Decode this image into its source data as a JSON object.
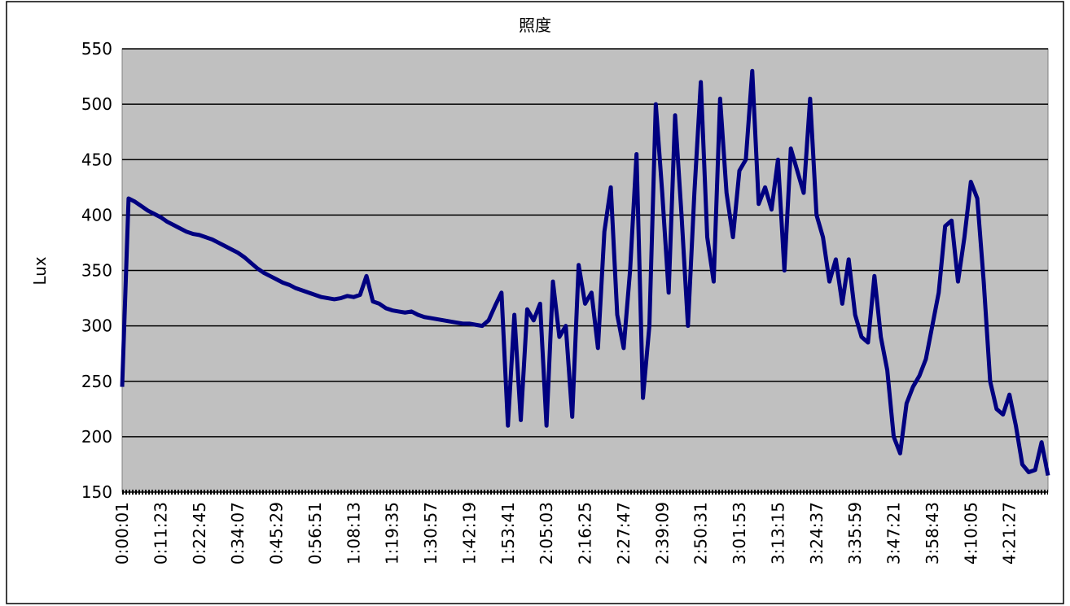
{
  "chart_data": {
    "type": "line",
    "title": "照度",
    "y_label": "Lux",
    "categories": [
      "0:00:01",
      null,
      null,
      null,
      null,
      null,
      "0:11:23",
      null,
      null,
      null,
      null,
      null,
      "0:22:45",
      null,
      null,
      null,
      null,
      null,
      "0:34:07",
      null,
      null,
      null,
      null,
      null,
      "0:45:29",
      null,
      null,
      null,
      null,
      null,
      "0:56:51",
      null,
      null,
      null,
      null,
      null,
      "1:08:13",
      null,
      null,
      null,
      null,
      null,
      "1:19:35",
      null,
      null,
      null,
      null,
      null,
      "1:30:57",
      null,
      null,
      null,
      null,
      null,
      "1:42:19",
      null,
      null,
      null,
      null,
      null,
      "1:53:41",
      null,
      null,
      null,
      null,
      null,
      "2:05:03",
      null,
      null,
      null,
      null,
      null,
      "2:16:25",
      null,
      null,
      null,
      null,
      null,
      "2:27:47",
      null,
      null,
      null,
      null,
      null,
      "2:39:09",
      null,
      null,
      null,
      null,
      null,
      "2:50:31",
      null,
      null,
      null,
      null,
      null,
      "3:01:53",
      null,
      null,
      null,
      null,
      null,
      "3:13:15",
      null,
      null,
      null,
      null,
      null,
      "3:24:37",
      null,
      null,
      null,
      null,
      null,
      "3:35:59",
      null,
      null,
      null,
      null,
      null,
      "3:47:21",
      null,
      null,
      null,
      null,
      null,
      "3:58:43",
      null,
      null,
      null,
      null,
      null,
      "4:10:05",
      null,
      null,
      null,
      null,
      null,
      "4:21:27",
      null,
      null,
      null,
      null,
      null,
      null
    ],
    "values": [
      245,
      415,
      412,
      408,
      404,
      401,
      398,
      394,
      391,
      388,
      385,
      383,
      382,
      380,
      378,
      375,
      372,
      369,
      366,
      362,
      357,
      352,
      348,
      345,
      342,
      339,
      337,
      334,
      332,
      330,
      328,
      326,
      325,
      324,
      325,
      327,
      326,
      328,
      345,
      322,
      320,
      316,
      314,
      313,
      312,
      313,
      310,
      308,
      307,
      306,
      305,
      304,
      303,
      302,
      302,
      301,
      300,
      305,
      318,
      330,
      210,
      310,
      215,
      315,
      305,
      320,
      210,
      340,
      290,
      300,
      218,
      355,
      320,
      330,
      280,
      385,
      425,
      310,
      280,
      350,
      455,
      235,
      300,
      500,
      420,
      330,
      490,
      400,
      300,
      420,
      520,
      380,
      340,
      505,
      420,
      380,
      440,
      450,
      530,
      410,
      425,
      405,
      450,
      350,
      460,
      440,
      420,
      505,
      400,
      380,
      340,
      360,
      320,
      360,
      310,
      290,
      285,
      345,
      290,
      260,
      200,
      185,
      230,
      245,
      255,
      270,
      300,
      330,
      390,
      395,
      340,
      380,
      430,
      415,
      340,
      250,
      225,
      220,
      238,
      210,
      175,
      168,
      170,
      195,
      165
    ],
    "color": "#000080",
    "ylim": [
      150,
      550
    ],
    "yticks": [
      150,
      200,
      250,
      300,
      350,
      400,
      450,
      500,
      550
    ],
    "grid": true
  }
}
